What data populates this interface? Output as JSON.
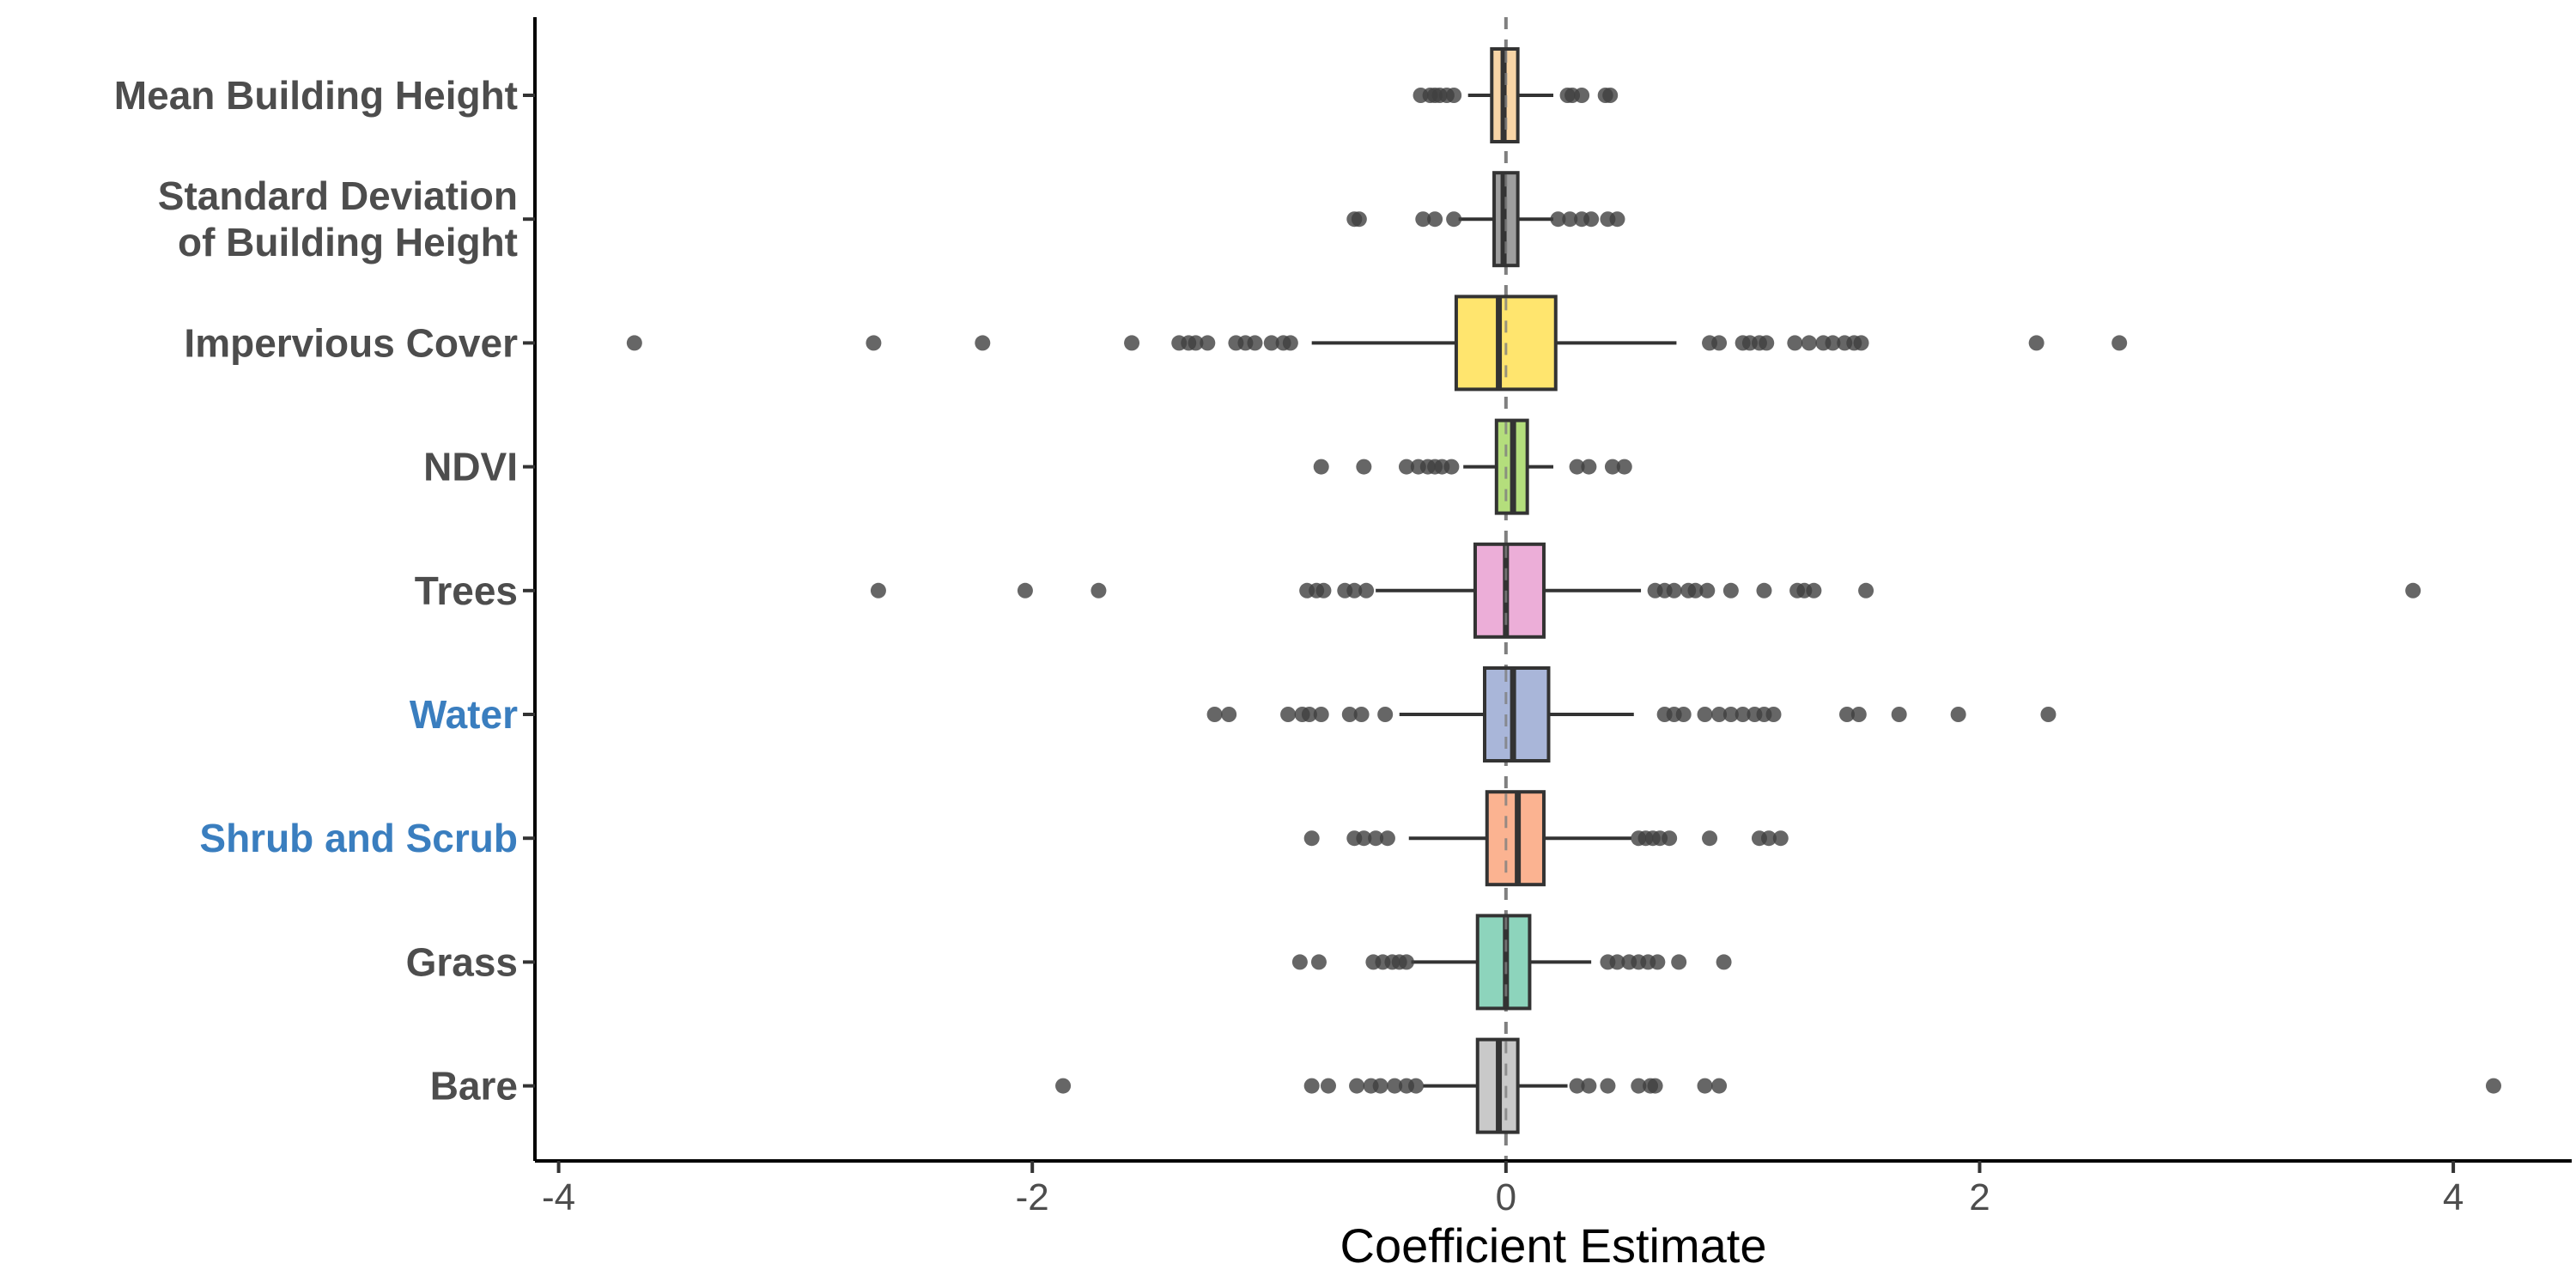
{
  "chart_data": {
    "type": "boxplot",
    "orientation": "horizontal",
    "xlabel": "Coefficient Estimate",
    "ylabel": "",
    "xlim": [
      -4.1,
      4.5
    ],
    "xticks": [
      -4,
      -2,
      0,
      2,
      4
    ],
    "xtick_labels": [
      "-4",
      "-2",
      "0",
      "2",
      "4"
    ],
    "reference_line_x": 0,
    "grid": false,
    "legend": "none",
    "colors": {
      "text_default": "#4d4d4d",
      "text_highlight": "#3a7ebf",
      "box_stroke": "#333333",
      "outlier_fill": "#404040",
      "reference_line": "#7f7f7f"
    },
    "series": [
      {
        "category": "Mean Building Height",
        "label_lines": [
          "Mean Building Height"
        ],
        "highlight": false,
        "fill": "#f8d5a6",
        "q1": -0.06,
        "median": -0.01,
        "q3": 0.05,
        "whisker_low": -0.16,
        "whisker_high": 0.2,
        "outliers": [
          -0.36,
          -0.32,
          -0.3,
          -0.28,
          -0.25,
          -0.22,
          0.26,
          0.28,
          0.32,
          0.42,
          0.44
        ]
      },
      {
        "category": "Standard Deviation of Building Height",
        "label_lines": [
          "Standard Deviation",
          "of Building Height"
        ],
        "highlight": false,
        "fill": "#9e9e9e",
        "q1": -0.05,
        "median": -0.01,
        "q3": 0.05,
        "whisker_low": -0.2,
        "whisker_high": 0.2,
        "outliers": [
          -0.64,
          -0.62,
          -0.35,
          -0.3,
          -0.22,
          0.22,
          0.27,
          0.32,
          0.36,
          0.43,
          0.47
        ]
      },
      {
        "category": "Impervious Cover",
        "label_lines": [
          "Impervious Cover"
        ],
        "highlight": false,
        "fill": "#ffe56e",
        "q1": -0.21,
        "median": -0.03,
        "q3": 0.21,
        "whisker_low": -0.82,
        "whisker_high": 0.72,
        "outliers": [
          -3.68,
          -2.67,
          -2.21,
          -1.58,
          -1.38,
          -1.34,
          -1.31,
          -1.26,
          -1.14,
          -1.1,
          -1.06,
          -0.99,
          -0.94,
          -0.91,
          0.86,
          0.9,
          1.0,
          1.03,
          1.07,
          1.1,
          1.22,
          1.28,
          1.34,
          1.38,
          1.43,
          1.47,
          1.5,
          2.24,
          2.59
        ]
      },
      {
        "category": "NDVI",
        "label_lines": [
          "NDVI"
        ],
        "highlight": false,
        "fill": "#b4de7c",
        "q1": -0.04,
        "median": 0.03,
        "q3": 0.09,
        "whisker_low": -0.18,
        "whisker_high": 0.2,
        "outliers": [
          -0.78,
          -0.6,
          -0.42,
          -0.37,
          -0.33,
          -0.3,
          -0.27,
          -0.23,
          0.3,
          0.35,
          0.45,
          0.5
        ]
      },
      {
        "category": "Trees",
        "label_lines": [
          "Trees"
        ],
        "highlight": false,
        "fill": "#ecaed8",
        "q1": -0.13,
        "median": 0.0,
        "q3": 0.16,
        "whisker_low": -0.55,
        "whisker_high": 0.57,
        "outliers": [
          -2.65,
          -2.03,
          -1.72,
          -0.84,
          -0.8,
          -0.77,
          -0.68,
          -0.64,
          -0.59,
          0.63,
          0.67,
          0.71,
          0.77,
          0.8,
          0.85,
          0.95,
          1.09,
          1.23,
          1.26,
          1.3,
          1.52,
          3.83
        ]
      },
      {
        "category": "Water",
        "label_lines": [
          "Water"
        ],
        "highlight": true,
        "fill": "#a9b6d9",
        "q1": -0.09,
        "median": 0.03,
        "q3": 0.18,
        "whisker_low": -0.45,
        "whisker_high": 0.54,
        "outliers": [
          -1.23,
          -1.17,
          -0.92,
          -0.86,
          -0.83,
          -0.78,
          -0.66,
          -0.61,
          -0.51,
          0.67,
          0.71,
          0.75,
          0.84,
          0.9,
          0.95,
          1.0,
          1.05,
          1.09,
          1.13,
          1.44,
          1.49,
          1.66,
          1.91,
          2.29
        ]
      },
      {
        "category": "Shrub and Scrub",
        "label_lines": [
          "Shrub and Scrub"
        ],
        "highlight": true,
        "fill": "#fbb391",
        "q1": -0.08,
        "median": 0.05,
        "q3": 0.16,
        "whisker_low": -0.41,
        "whisker_high": 0.53,
        "outliers": [
          -0.82,
          -0.64,
          -0.6,
          -0.55,
          -0.5,
          0.56,
          0.59,
          0.62,
          0.65,
          0.69,
          0.86,
          1.07,
          1.11,
          1.16
        ]
      },
      {
        "category": "Grass",
        "label_lines": [
          "Grass"
        ],
        "highlight": false,
        "fill": "#8dd4bc",
        "q1": -0.12,
        "median": 0.0,
        "q3": 0.1,
        "whisker_low": -0.4,
        "whisker_high": 0.36,
        "outliers": [
          -0.87,
          -0.79,
          -0.56,
          -0.52,
          -0.48,
          -0.45,
          -0.42,
          0.43,
          0.47,
          0.52,
          0.56,
          0.6,
          0.64,
          0.73,
          0.92
        ]
      },
      {
        "category": "Bare",
        "label_lines": [
          "Bare"
        ],
        "highlight": false,
        "fill": "#c9c9c9",
        "q1": -0.12,
        "median": -0.03,
        "q3": 0.05,
        "whisker_low": -0.35,
        "whisker_high": 0.26,
        "outliers": [
          -1.87,
          -0.82,
          -0.75,
          -0.63,
          -0.57,
          -0.53,
          -0.47,
          -0.42,
          -0.38,
          0.3,
          0.35,
          0.43,
          0.56,
          0.61,
          0.63,
          0.84,
          0.9,
          4.17
        ]
      }
    ]
  }
}
